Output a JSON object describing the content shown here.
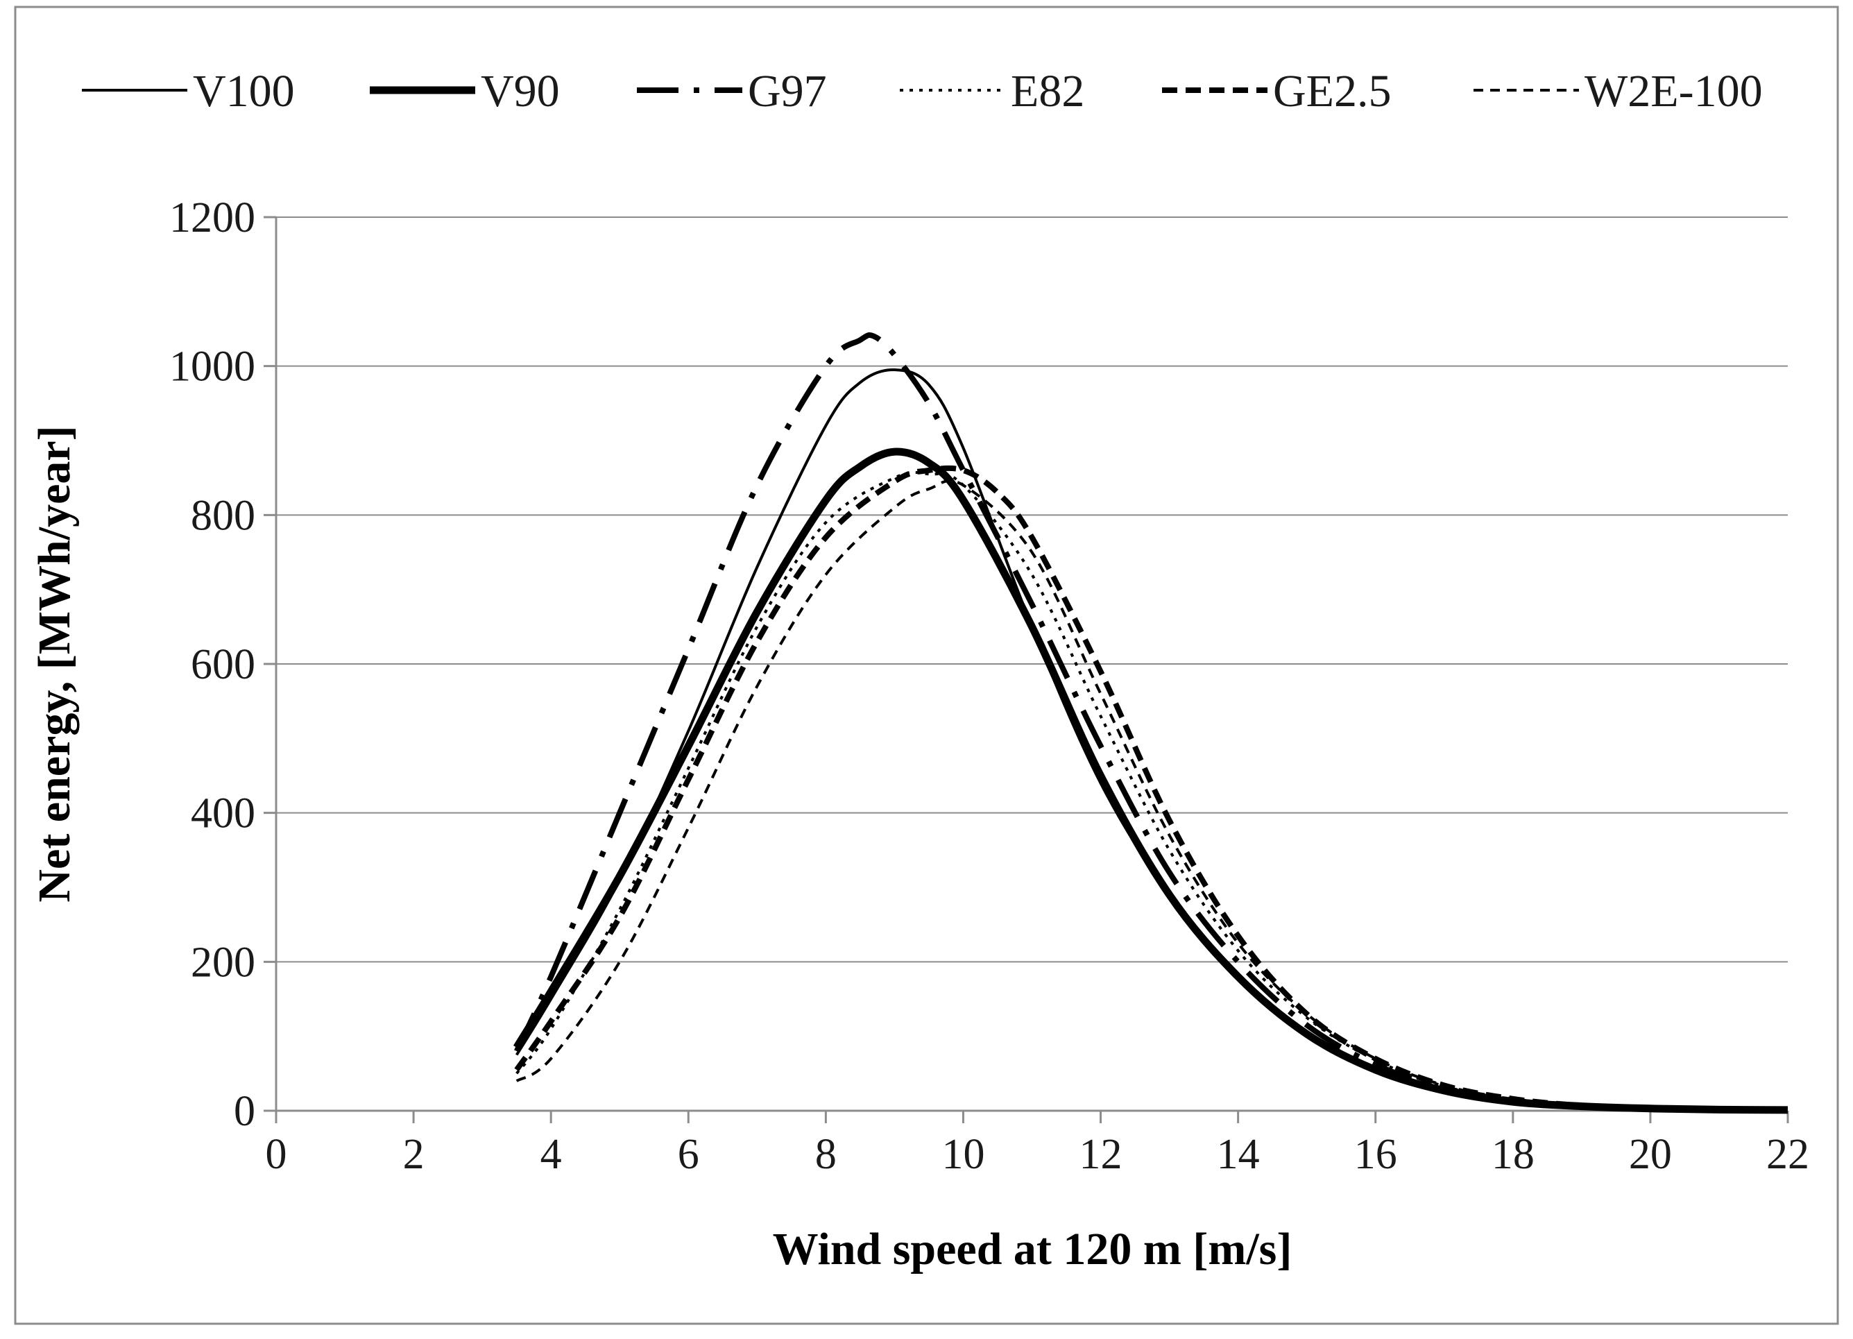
{
  "chart_data": {
    "type": "line",
    "title": "",
    "xlabel": "Wind speed at 120 m [m/s]",
    "ylabel": "Net energy, [MWh/year]",
    "xlim": [
      0,
      22
    ],
    "ylim": [
      0,
      1200
    ],
    "xticks": [
      0,
      2,
      4,
      6,
      8,
      10,
      12,
      14,
      16,
      18,
      20,
      22
    ],
    "yticks": [
      0,
      200,
      400,
      600,
      800,
      1000,
      1200
    ],
    "grid": "horizontal",
    "legend_position": "top",
    "series": [
      {
        "name": "V100",
        "style": "solid-thin",
        "x": [
          3.5,
          4,
          5,
          6,
          7,
          8,
          8.5,
          9,
          9.5,
          10,
          11,
          12,
          13,
          14,
          15,
          16,
          17,
          18,
          19,
          20,
          21,
          22
        ],
        "y": [
          75,
          150,
          310,
          510,
          730,
          920,
          978,
          995,
          975,
          890,
          650,
          440,
          290,
          180,
          105,
          57,
          28,
          13,
          6,
          3,
          1.5,
          1
        ]
      },
      {
        "name": "V90",
        "style": "solid-thick",
        "x": [
          3.5,
          4,
          5,
          6,
          7,
          8,
          8.5,
          9,
          9.5,
          10,
          11,
          12,
          13,
          14,
          15,
          16,
          17,
          18,
          19,
          20,
          21,
          22
        ],
        "y": [
          85,
          160,
          315,
          490,
          670,
          820,
          865,
          885,
          870,
          820,
          650,
          450,
          290,
          180,
          103,
          55,
          27,
          12,
          6,
          3,
          1.5,
          1
        ]
      },
      {
        "name": "G97",
        "style": "dash-dot",
        "x": [
          3.5,
          4,
          5,
          6,
          7,
          8,
          8.5,
          8.7,
          9,
          9.5,
          10,
          11,
          12,
          13,
          14,
          15,
          16,
          17,
          18,
          19,
          20,
          21,
          22
        ],
        "y": [
          80,
          180,
          400,
          620,
          840,
          1000,
          1035,
          1040,
          1015,
          950,
          860,
          680,
          490,
          320,
          200,
          115,
          62,
          30,
          14,
          6,
          3,
          1.5,
          1
        ]
      },
      {
        "name": "E82",
        "style": "dotted",
        "x": [
          3.5,
          4,
          5,
          6,
          7,
          8,
          9,
          9.5,
          10,
          11,
          12,
          13,
          14,
          15,
          16,
          17,
          18,
          19,
          20,
          21,
          22
        ],
        "y": [
          50,
          110,
          270,
          460,
          650,
          790,
          850,
          855,
          840,
          720,
          530,
          350,
          215,
          125,
          68,
          33,
          15,
          7,
          3,
          1.5,
          1
        ]
      },
      {
        "name": "GE2.5",
        "style": "dashed-thick",
        "x": [
          3.5,
          4,
          5,
          6,
          7,
          8,
          9,
          9.5,
          10,
          10.5,
          11,
          12,
          13,
          14,
          15,
          16,
          17,
          18,
          19,
          20,
          21,
          22
        ],
        "y": [
          55,
          120,
          260,
          445,
          630,
          770,
          845,
          860,
          860,
          830,
          770,
          590,
          390,
          235,
          130,
          70,
          34,
          16,
          7,
          3,
          1.5,
          1
        ]
      },
      {
        "name": "W2E-100",
        "style": "dashed-thin",
        "x": [
          3.5,
          4,
          5,
          6,
          7,
          8,
          9,
          9.5,
          10,
          11,
          12,
          13,
          14,
          15,
          16,
          17,
          18,
          19,
          20,
          21,
          22
        ],
        "y": [
          40,
          70,
          200,
          380,
          570,
          720,
          810,
          835,
          840,
          750,
          560,
          370,
          225,
          130,
          70,
          34,
          16,
          7,
          3,
          1.5,
          1
        ]
      }
    ]
  }
}
